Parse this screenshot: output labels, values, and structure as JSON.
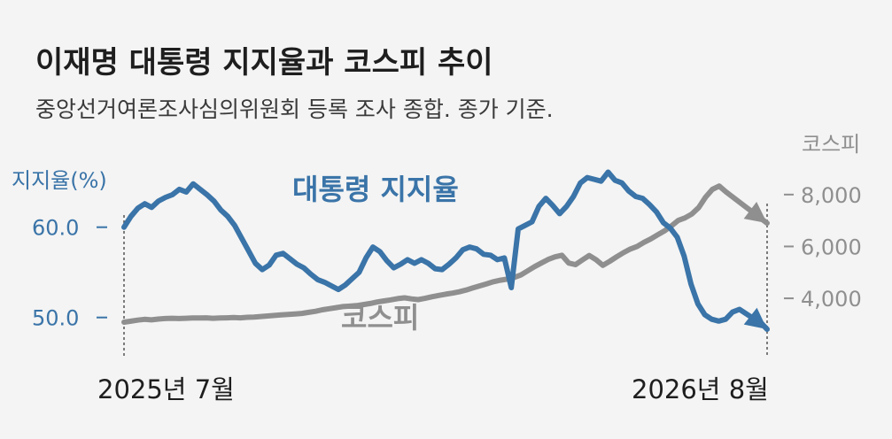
{
  "colors": {
    "approval": "#3a74a8",
    "kospi": "#8f8f8f",
    "title": "#1e1e1e",
    "background": "#f4f4f4"
  },
  "chart_data": {
    "type": "line",
    "title": "이재명 대통령 지지율과 코스피 추이",
    "subtitle": "중앙선거여론조사심의위원회 등록 조사 종합. 종가 기준.",
    "x_range": [
      "2025-07",
      "2026-08"
    ],
    "x_tick_labels": [
      "2025년 7월",
      "2026년 8월"
    ],
    "grid": false,
    "legend": "direct labels on lines",
    "y_left": {
      "label": "지지율(%)",
      "ticks": [
        "60.0",
        "50.0"
      ],
      "tick_values": [
        60,
        50
      ],
      "range": [
        43.5,
        68.5
      ]
    },
    "y_right": {
      "label": "코스피",
      "ticks": [
        "8,000",
        "6,000",
        "4,000"
      ],
      "tick_values": [
        8000,
        6000,
        4000
      ],
      "range": [
        1000,
        9700
      ]
    },
    "series": [
      {
        "name": "대통령 지지율",
        "axis": "left",
        "x_start": "2025-07",
        "x_end": "2026-08",
        "values": [
          60.0,
          61.2,
          62.1,
          62.6,
          62.2,
          62.9,
          63.3,
          63.6,
          64.2,
          63.9,
          64.8,
          64.2,
          63.6,
          62.9,
          61.9,
          61.2,
          60.2,
          58.8,
          57.4,
          56.0,
          55.3,
          55.8,
          56.9,
          57.1,
          56.5,
          55.9,
          55.5,
          54.8,
          54.2,
          53.9,
          53.5,
          53.1,
          53.6,
          54.3,
          55.0,
          56.6,
          57.8,
          57.3,
          56.3,
          55.5,
          55.9,
          56.4,
          56.0,
          56.4,
          56.0,
          55.4,
          55.3,
          55.9,
          56.6,
          57.5,
          57.8,
          57.6,
          57.0,
          56.9,
          56.4,
          56.6,
          53.3,
          59.8,
          60.2,
          60.6,
          62.3,
          63.2,
          62.4,
          61.5,
          62.3,
          63.4,
          64.9,
          65.5,
          65.3,
          65.1,
          66.1,
          65.2,
          64.9,
          64.0,
          63.4,
          63.2,
          62.5,
          61.7,
          60.5,
          59.9,
          58.9,
          56.8,
          53.7,
          51.5,
          50.3,
          49.8,
          49.6,
          49.8,
          50.6,
          50.9,
          50.4,
          49.9,
          49.5,
          48.7
        ]
      },
      {
        "name": "코스피",
        "axis": "right",
        "x_start": "2025-07",
        "x_end": "2026-08",
        "values": [
          3080,
          3120,
          3160,
          3190,
          3170,
          3200,
          3220,
          3230,
          3220,
          3230,
          3240,
          3240,
          3250,
          3230,
          3240,
          3250,
          3260,
          3250,
          3270,
          3280,
          3300,
          3320,
          3340,
          3360,
          3380,
          3400,
          3420,
          3460,
          3500,
          3560,
          3600,
          3640,
          3680,
          3700,
          3720,
          3760,
          3800,
          3860,
          3900,
          3940,
          3990,
          4020,
          3980,
          3950,
          4000,
          4060,
          4110,
          4160,
          4200,
          4250,
          4320,
          4400,
          4480,
          4560,
          4640,
          4700,
          4740,
          4800,
          4900,
          5060,
          5220,
          5360,
          5500,
          5600,
          5660,
          5360,
          5300,
          5480,
          5650,
          5490,
          5270,
          5430,
          5600,
          5760,
          5900,
          6000,
          6160,
          6290,
          6450,
          6600,
          6790,
          7000,
          7100,
          7250,
          7500,
          7900,
          8200,
          8330,
          8100,
          7900,
          7700,
          7500,
          7300,
          7100,
          6900
        ]
      }
    ]
  }
}
